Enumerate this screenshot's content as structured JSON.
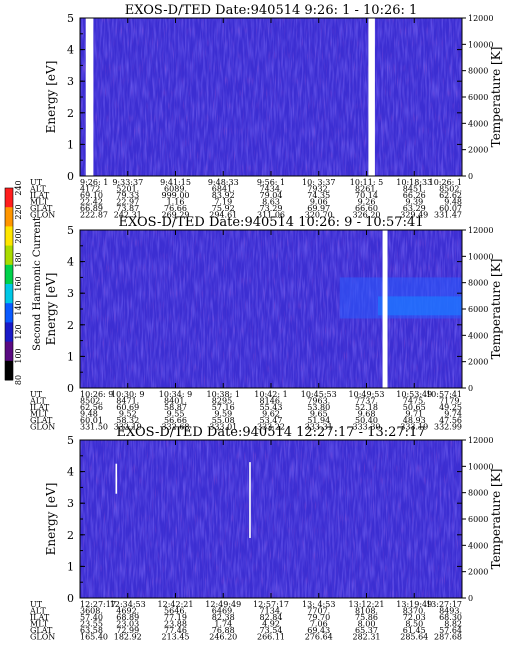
{
  "colorbar": {
    "label": "Second Harmonic Current",
    "ticks": [
      "80",
      "100",
      "120",
      "140",
      "160",
      "180",
      "200",
      "220",
      "240"
    ],
    "colors": [
      "#000000",
      "#5a0a82",
      "#1a1ac8",
      "#0a5aff",
      "#00c8e6",
      "#00d24b",
      "#aadc00",
      "#ffe600",
      "#ff9600",
      "#ff1e1e"
    ]
  },
  "row_labels": [
    "UT",
    "ALT",
    "ILAT",
    "MLT",
    "GLAT",
    "GLON"
  ],
  "left_axis_label": "Energy [eV]",
  "right_axis_label": "Temperature [K]",
  "chart_data": [
    {
      "type": "heatmap",
      "title": "EXOS-D/TED   Date:940514   9:26: 1 - 10:26: 1",
      "ylabel": "Energy [eV]",
      "y2label": "Temperature [K]",
      "ylim": [
        0,
        5
      ],
      "y2lim": [
        0,
        12000
      ],
      "yticks": [
        "0",
        "1",
        "2",
        "3",
        "4",
        "5"
      ],
      "y2ticks": [
        "0",
        "2000",
        "4000",
        "6000",
        "8000",
        "10000",
        "12000"
      ],
      "data_gaps_fraction": [
        [
          0.015,
          0.035
        ],
        [
          0.755,
          0.772
        ]
      ],
      "bright_band": null,
      "lines": [],
      "columns": [
        {
          "UT": "9:26: 1",
          "ALT": "4172.",
          "ILAT": "69.10",
          "MLT": "22.42",
          "GLAT": "66.89",
          "GLON": "222.87"
        },
        {
          "UT": "9:33:37",
          "ALT": "5201.",
          "ILAT": "79.33",
          "MLT": "22.97",
          "GLAT": "73.87",
          "GLON": "242.31"
        },
        {
          "UT": "9:41:15",
          "ALT": "6089.",
          "ILAT": "999.00",
          "MLT": "1.16",
          "GLAT": "76.66",
          "GLON": "269.29"
        },
        {
          "UT": "9:48:33",
          "ALT": "6841.",
          "ILAT": "83.92",
          "MLT": "7.19",
          "GLAT": "75.92",
          "GLON": "294.61"
        },
        {
          "UT": "9:56: 1",
          "ALT": "7434.",
          "ILAT": "79.04",
          "MLT": "8.63",
          "GLAT": "73.29",
          "GLON": "311.06"
        },
        {
          "UT": "10: 3:37",
          "ALT": "7932.",
          "ILAT": "74.35",
          "MLT": "9.06",
          "GLAT": "69.97",
          "GLON": "320.70"
        },
        {
          "UT": "10:11: 5",
          "ALT": "8261.",
          "ILAT": "70.14",
          "MLT": "9.26",
          "GLAT": "66.60",
          "GLON": "326.20"
        },
        {
          "UT": "10:18:33",
          "ALT": "8451.",
          "ILAT": "66.26",
          "MLT": "9.39",
          "GLAT": "63.29",
          "GLON": "329.49"
        },
        {
          "UT": "10:26: 1",
          "ALT": "8502.",
          "ILAT": "62.62",
          "MLT": "9.48",
          "GLAT": "60.07",
          "GLON": "331.47"
        }
      ]
    },
    {
      "type": "heatmap",
      "title": "EXOS-D/TED   Date:940514   10:26: 9 - 10:57:41",
      "ylabel": "Energy [eV]",
      "y2label": "Temperature [K]",
      "ylim": [
        0,
        5
      ],
      "y2lim": [
        0,
        12000
      ],
      "yticks": [
        "0",
        "1",
        "2",
        "3",
        "4",
        "5"
      ],
      "y2ticks": [
        "0",
        "2000",
        "4000",
        "6000",
        "8000",
        "10000",
        "12000"
      ],
      "data_gaps_fraction": [
        [
          0.792,
          0.805
        ]
      ],
      "bright_band": {
        "x_from": 0.68,
        "y_from": 2.2,
        "y_to": 3.5
      },
      "lines": [],
      "columns": [
        {
          "UT": "10:26: 9",
          "ALT": "8502.",
          "ILAT": "62.56",
          "MLT": "9.48",
          "GLAT": "60.01",
          "GLON": "331.50"
        },
        {
          "UT": "10:30: 9",
          "ALT": "8471.",
          "ILAT": "60.69",
          "MLT": "9.52",
          "GLAT": "58.32",
          "GLON": "332.19"
        },
        {
          "UT": "10:34: 9",
          "ALT": "8401.",
          "ILAT": "58.87",
          "MLT": "9.55",
          "GLAT": "56.66",
          "GLON": "332.68"
        },
        {
          "UT": "10:38: 1",
          "ALT": "8295.",
          "ILAT": "57.16",
          "MLT": "9.59",
          "GLAT": "55.08",
          "GLON": "333.01"
        },
        {
          "UT": "10:42: 1",
          "ALT": "8146.",
          "ILAT": "55.43",
          "MLT": "9.62",
          "GLAT": "53.47",
          "GLON": "333.22"
        },
        {
          "UT": "10:45:53",
          "ALT": "7963.",
          "ILAT": "53.80",
          "MLT": "9.65",
          "GLAT": "51.94",
          "GLON": "333.31"
        },
        {
          "UT": "10:49:53",
          "ALT": "7737.",
          "ILAT": "52.18",
          "MLT": "9.68",
          "GLAT": "50.40",
          "GLON": "333.30"
        },
        {
          "UT": "10:53:49",
          "ALT": "7475.",
          "ILAT": "50.65",
          "MLT": "9.71",
          "GLAT": "48.93",
          "GLON": "333.19"
        },
        {
          "UT": "10:57:41",
          "ALT": "7179.",
          "ILAT": "49.25",
          "MLT": "9.74",
          "GLAT": "47.56",
          "GLON": "332.99"
        }
      ]
    },
    {
      "type": "heatmap",
      "title": "EXOS-D/TED   Date:940514   12:27:17 - 13:27:17",
      "ylabel": "Energy [eV]",
      "y2label": "Temperature [K]",
      "ylim": [
        0,
        5
      ],
      "y2lim": [
        0,
        12000
      ],
      "yticks": [
        "0",
        "1",
        "2",
        "3",
        "4",
        "5"
      ],
      "y2ticks": [
        "0",
        "2000",
        "4000",
        "6000",
        "8000",
        "10000",
        "12000"
      ],
      "data_gaps_fraction": [],
      "bright_band": null,
      "lines": [
        {
          "x": 0.095,
          "y_from": 3.3,
          "y_to": 4.25
        },
        {
          "x": 0.445,
          "y_from": 1.9,
          "y_to": 4.3
        }
      ],
      "columns": [
        {
          "UT": "12:27:17",
          "ALT": "3608.",
          "ILAT": "57.40",
          "MLT": "23.55",
          "GLAT": "63.58",
          "GLON": "165.40"
        },
        {
          "UT": "12:34:53",
          "ALT": "4692.",
          "ILAT": "68.89",
          "MLT": "23.03",
          "GLAT": "72.99",
          "GLON": "182.92"
        },
        {
          "UT": "12:42:21",
          "ALT": "5646.",
          "ILAT": "77.19",
          "MLT": "23.88",
          "GLAT": "77.46",
          "GLON": "213.45"
        },
        {
          "UT": "12:49:49",
          "ALT": "6469.",
          "ILAT": "82.38",
          "MLT": "1.74",
          "GLAT": "76.88",
          "GLON": "246.20"
        },
        {
          "UT": "12:57:17",
          "ALT": "7134.",
          "ILAT": "82.84",
          "MLT": "4.92",
          "GLAT": "73.54",
          "GLON": "266.11"
        },
        {
          "UT": "13: 4:53",
          "ALT": "7707.",
          "ILAT": "79.70",
          "MLT": "7.06",
          "GLAT": "69.43",
          "GLON": "276.64"
        },
        {
          "UT": "13:12:21",
          "ALT": "8108.",
          "ILAT": "75.86",
          "MLT": "8.00",
          "GLAT": "65.37",
          "GLON": "282.31"
        },
        {
          "UT": "13:19:49",
          "ALT": "8370.",
          "ILAT": "72.03",
          "MLT": "8.50",
          "GLAT": "61.45",
          "GLON": "285.64"
        },
        {
          "UT": "13:27:17",
          "ALT": "8493.",
          "ILAT": "68.30",
          "MLT": "8.82",
          "GLAT": "57.64",
          "GLON": "287.68"
        }
      ]
    }
  ]
}
